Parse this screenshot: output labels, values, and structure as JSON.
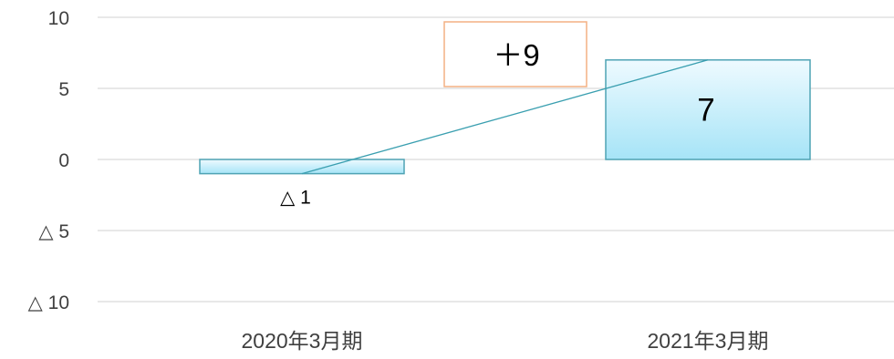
{
  "chart_data": {
    "type": "bar",
    "categories": [
      "2020年3月期",
      "2021年3月期"
    ],
    "values": [
      -1,
      7
    ],
    "value_labels": [
      "△ 1",
      "7"
    ],
    "ylim": [
      -10,
      10
    ],
    "yticks": [
      10,
      5,
      0,
      -5,
      -10
    ],
    "ytick_labels": [
      "10",
      "5",
      "0",
      "△ 5",
      "△ 10"
    ],
    "grid": true,
    "annotation": {
      "text": "＋9"
    },
    "connector_line": true,
    "colors": {
      "bar_top": "#eefaff",
      "bar_bottom": "#a6e4f7",
      "bar_border": "#4fa3b4",
      "connector": "#3a9fb0",
      "grid": "#d9d9d9",
      "annotation_border": "#f4b183",
      "text": "#404040",
      "label_text": "#000000"
    }
  }
}
